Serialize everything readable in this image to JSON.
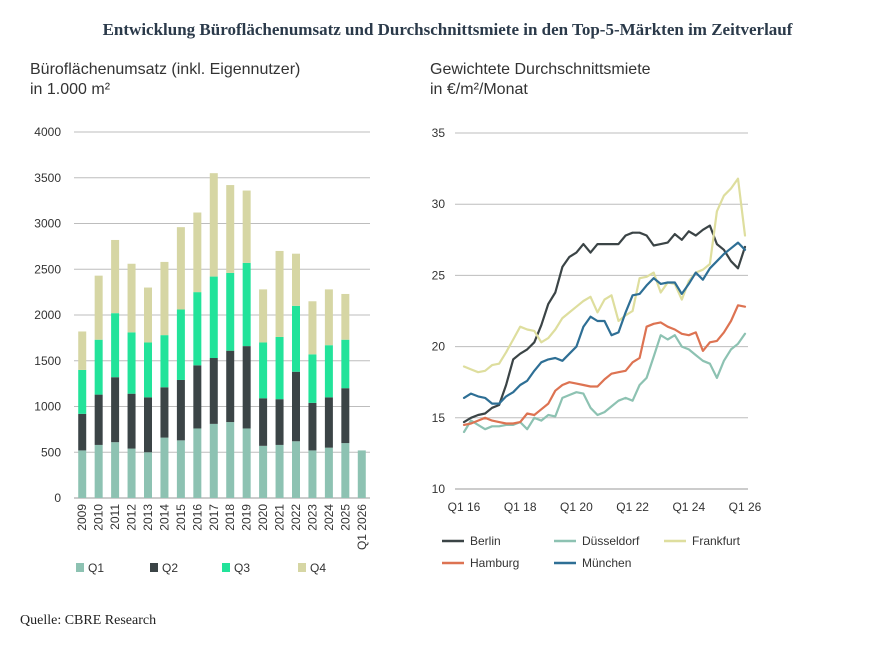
{
  "title": "Entwicklung Büroflächenumsatz und Durchschnittsmiete in den Top-5-Märkten im Zeitverlauf",
  "source": "Quelle: CBRE Research",
  "colors": {
    "Q1": "#8dc2b2",
    "Q2": "#3b4446",
    "Q3": "#22e39a",
    "Q4": "#d6d6a4",
    "Berlin": "#3b4446",
    "Düsseldorf": "#8dc2b2",
    "Frankfurt": "#dede9e",
    "Hamburg": "#dd7352",
    "München": "#2e6f95"
  },
  "chart_data": [
    {
      "type": "bar",
      "stacked": true,
      "title_line1": "Büroflächenumsatz (inkl. Eigennutzer)",
      "title_line2": "in 1.000 m²",
      "categories": [
        "2009",
        "2010",
        "2011",
        "2012",
        "2013",
        "2014",
        "2015",
        "2016",
        "2017",
        "2018",
        "2019",
        "2020",
        "2021",
        "2022",
        "2023",
        "2024",
        "2025",
        "Q1 2026"
      ],
      "ylim": [
        0,
        4000
      ],
      "yticks": [
        "0",
        "500",
        "1000",
        "1500",
        "2000",
        "2500",
        "3000",
        "3500",
        "4000"
      ],
      "grid": true,
      "legend_position": "bottom",
      "series": [
        {
          "name": "Q1",
          "values": [
            520,
            580,
            610,
            540,
            500,
            660,
            630,
            760,
            810,
            830,
            760,
            570,
            580,
            620,
            520,
            550,
            600,
            520
          ]
        },
        {
          "name": "Q2",
          "values": [
            400,
            550,
            710,
            600,
            600,
            550,
            660,
            690,
            720,
            780,
            900,
            520,
            500,
            760,
            520,
            550,
            600,
            0
          ]
        },
        {
          "name": "Q3",
          "values": [
            480,
            600,
            700,
            670,
            600,
            570,
            770,
            800,
            890,
            850,
            910,
            610,
            680,
            720,
            530,
            570,
            530,
            0
          ]
        },
        {
          "name": "Q4",
          "values": [
            420,
            700,
            800,
            750,
            600,
            800,
            900,
            870,
            1130,
            960,
            790,
            580,
            940,
            570,
            580,
            610,
            500,
            0
          ]
        }
      ]
    },
    {
      "type": "line",
      "title_line1": "Gewichtete Durchschnittsmiete",
      "title_line2": "in €/m²/Monat",
      "x_labels": [
        "Q1 16",
        "Q1 18",
        "Q1 20",
        "Q1 22",
        "Q1 24",
        "Q1 26"
      ],
      "ylim": [
        10,
        35
      ],
      "yticks": [
        "10",
        "15",
        "20",
        "25",
        "30",
        "35"
      ],
      "grid": true,
      "legend_position": "bottom",
      "quarters": 41,
      "series": [
        {
          "name": "Berlin",
          "values": [
            14.7,
            15.0,
            15.2,
            15.3,
            15.7,
            15.9,
            17.3,
            19.1,
            19.5,
            19.8,
            20.3,
            21.5,
            23.0,
            23.8,
            25.6,
            26.3,
            26.6,
            27.2,
            26.6,
            27.2,
            27.2,
            27.2,
            27.2,
            27.8,
            28.0,
            28.0,
            27.8,
            27.1,
            27.2,
            27.3,
            27.9,
            27.5,
            28.1,
            27.8,
            28.2,
            28.5,
            27.2,
            26.8,
            26.0,
            25.5,
            27.0
          ]
        },
        {
          "name": "Düsseldorf",
          "values": [
            14.0,
            14.8,
            14.5,
            14.2,
            14.4,
            14.4,
            14.5,
            14.5,
            14.7,
            14.2,
            15.0,
            14.8,
            15.2,
            15.1,
            16.4,
            16.6,
            16.8,
            16.7,
            15.7,
            15.2,
            15.4,
            15.8,
            16.2,
            16.4,
            16.2,
            17.3,
            17.8,
            19.3,
            20.8,
            20.5,
            20.8,
            20.0,
            19.8,
            19.4,
            19.0,
            18.8,
            17.8,
            19.0,
            19.8,
            20.2,
            20.9
          ]
        },
        {
          "name": "Frankfurt",
          "values": [
            18.6,
            18.4,
            18.2,
            18.3,
            18.7,
            18.8,
            19.6,
            20.5,
            21.4,
            21.2,
            21.1,
            20.3,
            20.6,
            21.2,
            22.0,
            22.4,
            22.8,
            23.2,
            23.5,
            22.4,
            23.3,
            23.6,
            21.8,
            22.2,
            22.5,
            24.8,
            24.9,
            25.2,
            23.8,
            24.5,
            24.4,
            23.3,
            24.6,
            25.2,
            25.4,
            25.8,
            29.5,
            30.6,
            31.1,
            31.8,
            27.8
          ]
        },
        {
          "name": "Hamburg",
          "values": [
            14.5,
            14.6,
            14.8,
            15.0,
            14.8,
            14.7,
            14.6,
            14.6,
            14.7,
            15.3,
            15.2,
            15.6,
            16.0,
            16.9,
            17.3,
            17.5,
            17.4,
            17.3,
            17.2,
            17.2,
            17.7,
            18.1,
            18.2,
            18.3,
            18.9,
            19.2,
            21.4,
            21.6,
            21.7,
            21.4,
            21.2,
            20.9,
            20.8,
            21.0,
            19.7,
            20.3,
            20.4,
            21.0,
            21.8,
            22.9,
            22.8
          ]
        },
        {
          "name": "München",
          "values": [
            16.4,
            16.7,
            16.5,
            16.4,
            16.0,
            16.0,
            16.5,
            16.8,
            17.3,
            17.6,
            18.3,
            18.9,
            19.1,
            19.2,
            19.0,
            19.5,
            20.0,
            21.4,
            22.1,
            21.8,
            21.8,
            20.8,
            21.0,
            22.4,
            23.6,
            23.7,
            24.3,
            24.8,
            24.4,
            24.5,
            24.5,
            23.7,
            24.4,
            25.2,
            24.7,
            25.5,
            26.0,
            26.5,
            26.9,
            27.3,
            26.8
          ]
        }
      ]
    }
  ]
}
